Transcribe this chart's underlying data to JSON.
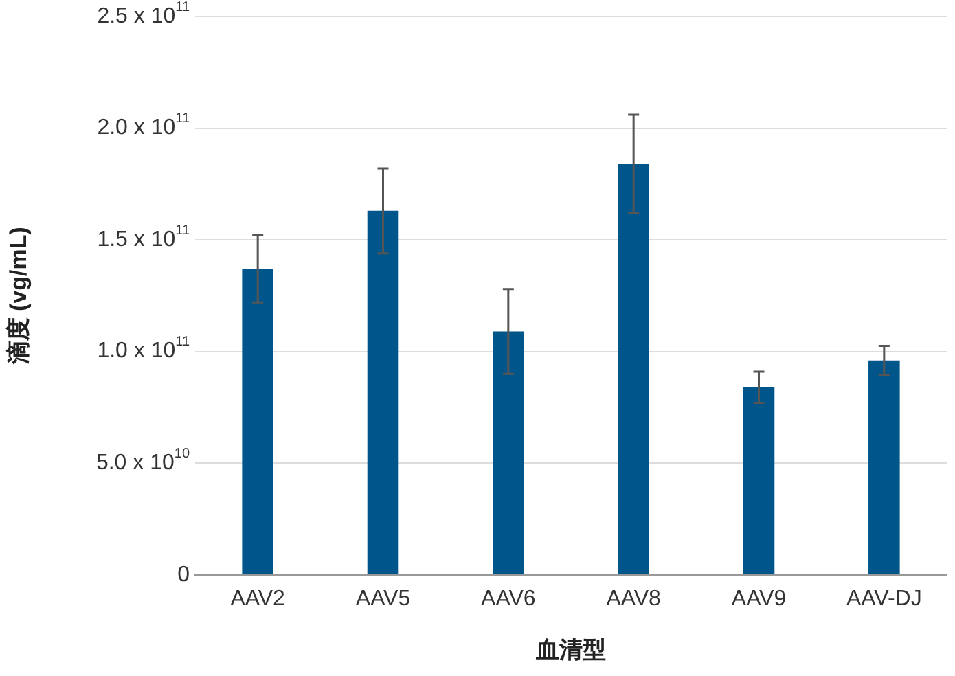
{
  "chart_data": {
    "type": "bar",
    "xlabel": "血清型",
    "ylabel": "滴度 (vg/mL)",
    "categories": [
      "AAV2",
      "AAV5",
      "AAV6",
      "AAV8",
      "AAV9",
      "AAV-DJ"
    ],
    "values": [
      137000000000.0,
      163000000000.0,
      109000000000.0,
      184000000000.0,
      84000000000.0,
      96000000000.0
    ],
    "errors": [
      15000000000.0,
      19000000000.0,
      19000000000.0,
      22000000000.0,
      7000000000.0,
      6500000000.0
    ],
    "color": "#00568a",
    "ylim": [
      0,
      250000000000.0
    ],
    "yticks": [
      {
        "value": 0,
        "label": "0"
      },
      {
        "value": 50000000000.0,
        "label": "5.0 x 10$^{10}$"
      },
      {
        "value": 100000000000.0,
        "label": "1.0 x 10$^{11}$"
      },
      {
        "value": 150000000000.0,
        "label": "1.5 x 10$^{11}$"
      },
      {
        "value": 200000000000.0,
        "label": "2.0 x 10$^{11}$"
      },
      {
        "value": 250000000000.0,
        "label": "2.5 x 10$^{11}$"
      }
    ],
    "grid": "y",
    "legend": false
  }
}
